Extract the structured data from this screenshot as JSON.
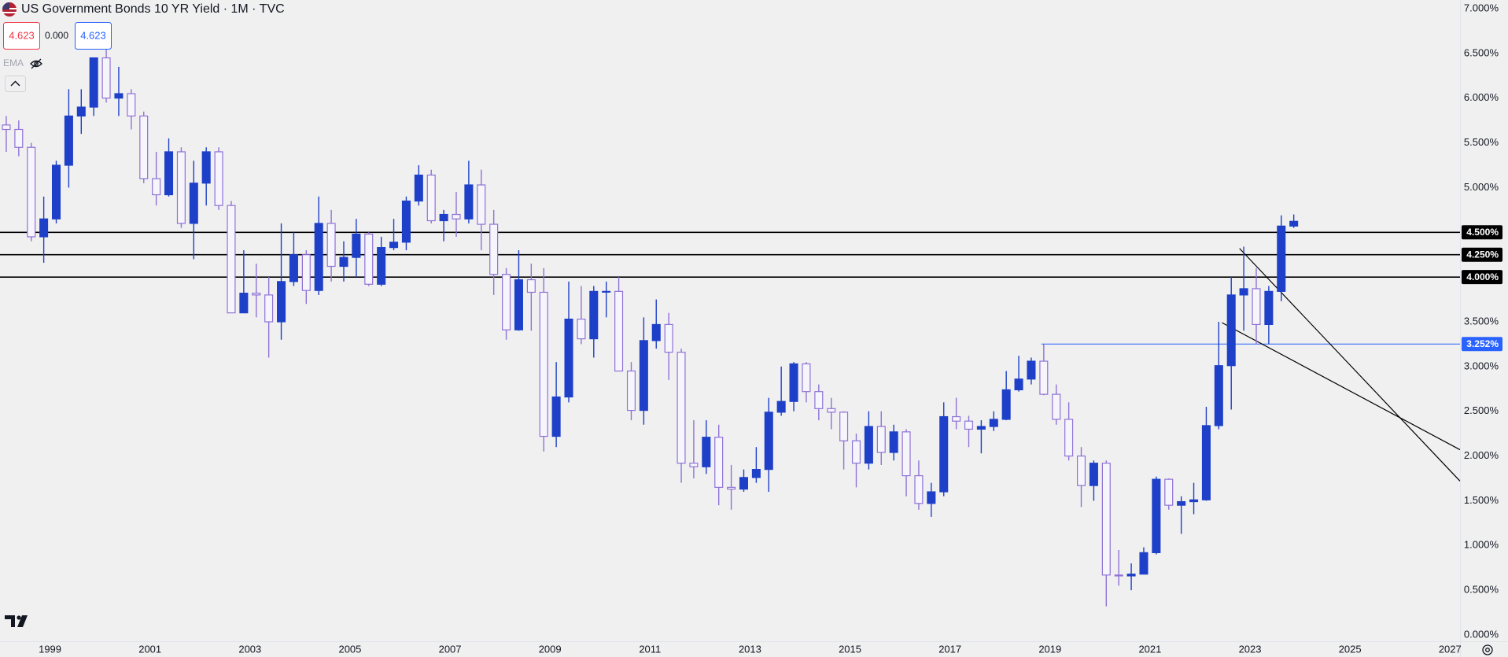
{
  "chart_data": {
    "type": "candlestick",
    "title": "US Government Bonds 10 YR Yield · 1M · TVC",
    "header": {
      "bid": "4.623",
      "spread": "0.000",
      "ask": "4.623",
      "indicator": "EMA"
    },
    "up_color": "#1e40c8",
    "down_color": "#8f72d6",
    "x": [
      1998.125,
      1998.375,
      1998.625,
      1998.875,
      1999.125,
      1999.375,
      1999.625,
      1999.875,
      2000.125,
      2000.375,
      2000.625,
      2000.875,
      2001.125,
      2001.375,
      2001.625,
      2001.875,
      2002.125,
      2002.375,
      2002.625,
      2002.875,
      2003.125,
      2003.375,
      2003.625,
      2003.875,
      2004.125,
      2004.375,
      2004.625,
      2004.875,
      2005.125,
      2005.375,
      2005.625,
      2005.875,
      2006.125,
      2006.375,
      2006.625,
      2006.875,
      2007.125,
      2007.375,
      2007.625,
      2007.875,
      2008.125,
      2008.375,
      2008.625,
      2008.875,
      2009.125,
      2009.375,
      2009.625,
      2009.875,
      2010.125,
      2010.375,
      2010.625,
      2010.875,
      2011.125,
      2011.375,
      2011.625,
      2011.875,
      2012.125,
      2012.375,
      2012.625,
      2012.875,
      2013.125,
      2013.375,
      2013.625,
      2013.875,
      2014.125,
      2014.375,
      2014.625,
      2014.875,
      2015.125,
      2015.375,
      2015.625,
      2015.875,
      2016.125,
      2016.375,
      2016.625,
      2016.875,
      2017.125,
      2017.375,
      2017.625,
      2017.875,
      2018.125,
      2018.375,
      2018.625,
      2018.875,
      2019.125,
      2019.375,
      2019.625,
      2019.875,
      2020.125,
      2020.375,
      2020.625,
      2020.875,
      2021.125,
      2021.375,
      2021.625,
      2021.875,
      2022.125,
      2022.375,
      2022.625,
      2022.875,
      2023.125,
      2023.375,
      2023.625,
      2023.875
    ],
    "open": [
      5.7,
      5.65,
      5.45,
      4.45,
      4.65,
      5.25,
      5.8,
      5.9,
      6.45,
      6.0,
      6.05,
      5.8,
      5.1,
      4.92,
      5.4,
      4.6,
      5.05,
      5.4,
      4.8,
      3.6,
      3.82,
      3.8,
      3.5,
      3.95,
      4.25,
      3.85,
      4.6,
      4.12,
      4.22,
      4.48,
      3.92,
      4.33,
      4.39,
      4.85,
      5.14,
      4.63,
      4.7,
      4.65,
      5.03,
      4.59,
      4.03,
      3.41,
      3.97,
      3.83,
      2.22,
      2.66,
      3.53,
      3.31,
      3.84,
      3.84,
      2.95,
      2.51,
      3.29,
      3.47,
      3.16,
      1.92,
      1.88,
      2.21,
      1.65,
      1.63,
      1.76,
      1.85,
      2.49,
      2.61,
      3.03,
      2.72,
      2.53,
      2.49,
      2.17,
      1.92,
      2.33,
      2.04,
      2.27,
      1.78,
      1.47,
      1.6,
      2.44,
      2.39,
      2.3,
      2.33,
      2.41,
      2.74,
      2.86,
      3.06,
      2.69,
      2.41,
      2.0,
      1.67,
      1.92,
      0.67,
      0.66,
      0.68,
      0.92,
      1.74,
      1.45,
      1.49,
      1.51,
      2.34,
      3.01,
      3.8,
      3.87,
      3.47,
      3.84,
      4.57
    ],
    "high": [
      5.8,
      5.75,
      5.5,
      4.9,
      5.3,
      6.1,
      6.1,
      6.45,
      6.6,
      6.35,
      6.1,
      5.85,
      5.4,
      5.55,
      5.45,
      5.3,
      5.45,
      5.45,
      4.85,
      4.3,
      4.15,
      4.0,
      4.6,
      4.5,
      4.3,
      4.9,
      4.75,
      4.4,
      4.65,
      4.5,
      4.45,
      4.65,
      4.9,
      5.25,
      5.2,
      4.75,
      4.95,
      5.3,
      5.2,
      4.75,
      4.1,
      4.3,
      4.15,
      4.1,
      3.05,
      3.95,
      3.9,
      3.9,
      3.95,
      4.0,
      3.05,
      3.55,
      3.75,
      3.6,
      3.2,
      2.4,
      2.4,
      2.35,
      1.9,
      1.85,
      2.1,
      2.65,
      3.0,
      3.05,
      3.05,
      2.8,
      2.65,
      2.5,
      2.25,
      2.5,
      2.5,
      2.35,
      2.3,
      1.95,
      1.7,
      2.6,
      2.65,
      2.45,
      2.4,
      2.5,
      2.95,
      3.12,
      3.1,
      3.25,
      2.8,
      2.6,
      2.1,
      1.95,
      1.95,
      0.95,
      0.8,
      0.98,
      1.77,
      1.75,
      1.55,
      1.7,
      2.55,
      3.5,
      4.0,
      4.34,
      4.1,
      3.9,
      4.69,
      4.7
    ],
    "low": [
      5.4,
      5.35,
      4.4,
      4.16,
      4.6,
      5.0,
      5.6,
      5.8,
      5.95,
      5.8,
      5.65,
      5.05,
      4.8,
      4.9,
      4.55,
      4.2,
      4.8,
      4.75,
      3.6,
      3.6,
      3.55,
      3.1,
      3.3,
      3.9,
      3.7,
      3.8,
      3.95,
      3.95,
      4.0,
      3.9,
      3.9,
      4.3,
      4.3,
      4.8,
      4.6,
      4.4,
      4.45,
      4.6,
      4.3,
      3.8,
      3.3,
      3.4,
      3.4,
      2.05,
      2.1,
      2.6,
      3.25,
      3.1,
      3.55,
      2.95,
      2.4,
      2.35,
      3.2,
      2.85,
      1.7,
      1.75,
      1.8,
      1.45,
      1.4,
      1.6,
      1.7,
      1.6,
      2.45,
      2.5,
      2.6,
      2.4,
      2.3,
      1.85,
      1.65,
      1.85,
      1.9,
      1.95,
      1.55,
      1.4,
      1.32,
      1.55,
      2.3,
      2.1,
      2.03,
      2.28,
      2.4,
      2.72,
      2.8,
      2.68,
      2.35,
      1.95,
      1.43,
      1.5,
      0.32,
      0.55,
      0.5,
      0.68,
      0.9,
      1.4,
      1.13,
      1.35,
      1.5,
      2.3,
      2.52,
      3.4,
      3.25,
      3.25,
      3.73,
      4.55
    ],
    "close": [
      5.65,
      5.45,
      4.45,
      4.65,
      5.25,
      5.8,
      5.9,
      6.45,
      6.0,
      6.05,
      5.8,
      5.1,
      4.92,
      5.4,
      4.6,
      5.05,
      5.4,
      4.8,
      3.6,
      3.82,
      3.8,
      3.5,
      3.95,
      4.25,
      3.85,
      4.6,
      4.12,
      4.22,
      4.48,
      3.92,
      4.33,
      4.39,
      4.85,
      5.14,
      4.63,
      4.7,
      4.65,
      5.03,
      4.59,
      4.03,
      3.41,
      3.97,
      3.83,
      2.22,
      2.66,
      3.53,
      3.31,
      3.84,
      3.84,
      2.95,
      2.51,
      3.29,
      3.47,
      3.16,
      1.92,
      1.88,
      2.21,
      1.65,
      1.63,
      1.76,
      1.85,
      2.49,
      2.61,
      3.03,
      2.72,
      2.53,
      2.49,
      2.17,
      1.92,
      2.33,
      2.04,
      2.27,
      1.78,
      1.47,
      1.6,
      2.44,
      2.39,
      2.3,
      2.33,
      2.41,
      2.74,
      2.86,
      3.06,
      2.69,
      2.41,
      2.0,
      1.67,
      1.92,
      0.67,
      0.66,
      0.68,
      0.92,
      1.74,
      1.45,
      1.49,
      1.51,
      2.34,
      3.01,
      3.8,
      3.87,
      3.47,
      3.84,
      4.57,
      4.623
    ],
    "xlim": [
      1998,
      2027.2
    ],
    "xticks": [
      1999,
      2001,
      2003,
      2005,
      2007,
      2009,
      2011,
      2013,
      2015,
      2017,
      2019,
      2021,
      2023,
      2025,
      2027
    ],
    "ylim": [
      0,
      7
    ],
    "yticks": [
      {
        "value": 0,
        "label": "0.000%"
      },
      {
        "value": 0.5,
        "label": "0.500%"
      },
      {
        "value": 1,
        "label": "1.000%"
      },
      {
        "value": 1.5,
        "label": "1.500%"
      },
      {
        "value": 2,
        "label": "2.000%"
      },
      {
        "value": 2.5,
        "label": "2.500%"
      },
      {
        "value": 3,
        "label": "3.000%"
      },
      {
        "value": 3.5,
        "label": "3.500%"
      },
      {
        "value": 4,
        "label": "4.000%"
      },
      {
        "value": 4.5,
        "label": "4.500%"
      },
      {
        "value": 5,
        "label": "5.000%"
      },
      {
        "value": 5.5,
        "label": "5.500%"
      },
      {
        "value": 6,
        "label": "6.000%"
      },
      {
        "value": 6.5,
        "label": "6.500%"
      },
      {
        "value": 7,
        "label": "7.000%"
      }
    ],
    "grid": false,
    "levels": [
      {
        "value": 4.5,
        "label": "4.500%",
        "color": "#000000"
      },
      {
        "value": 4.25,
        "label": "4.250%",
        "color": "#000000"
      },
      {
        "value": 4,
        "label": "4.000%",
        "color": "#000000"
      },
      {
        "value": 3.252,
        "label": "3.252%",
        "color": "#2962ff",
        "from": 2018.83
      }
    ],
    "trendlines": [
      {
        "x": [
          2022.79,
          2027.2
        ],
        "y": [
          4.32,
          1.72
        ],
        "color": "#000000"
      },
      {
        "x": [
          2022.44,
          2027.2
        ],
        "y": [
          3.49,
          2.07
        ],
        "color": "#000000"
      }
    ]
  }
}
